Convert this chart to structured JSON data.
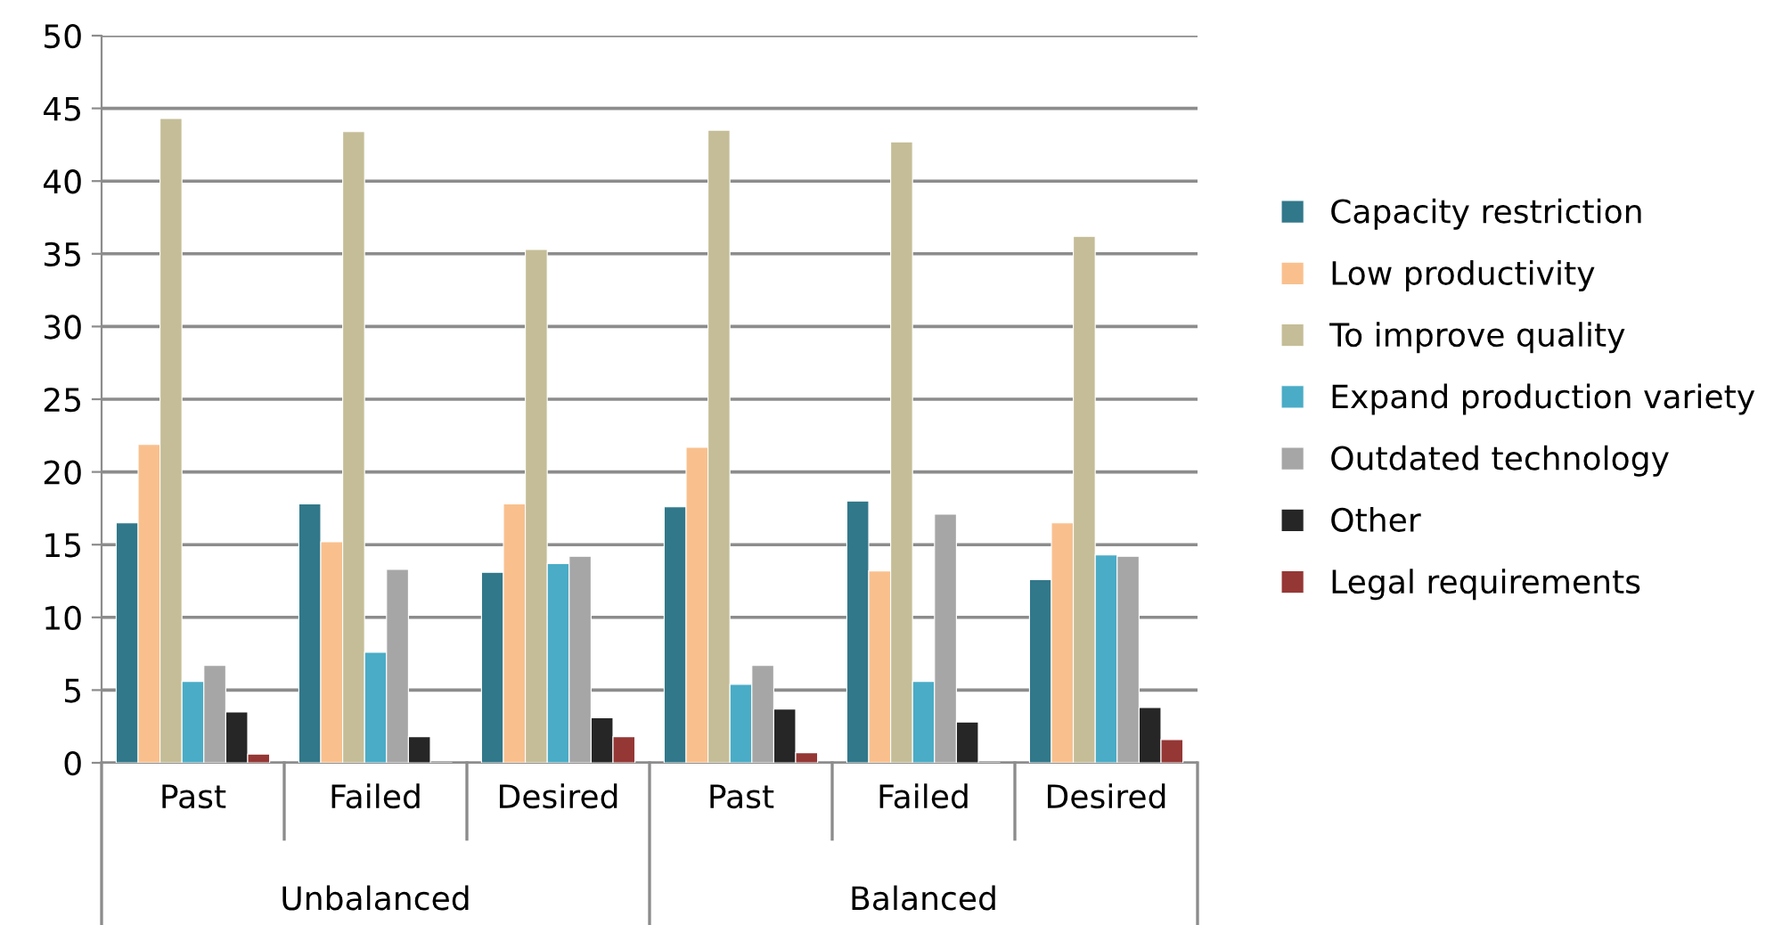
{
  "chart_data": {
    "type": "bar",
    "categories": [
      "Past",
      "Failed",
      "Desired",
      "Past",
      "Failed",
      "Desired"
    ],
    "series": [
      {
        "name": "Capacity restriction",
        "color": "#31788a",
        "values": [
          16.5,
          17.8,
          13.1,
          17.6,
          18.0,
          12.6
        ]
      },
      {
        "name": "Low productivity",
        "color": "#f9c08e",
        "values": [
          21.9,
          15.2,
          17.8,
          21.7,
          13.2,
          16.5
        ]
      },
      {
        "name": "To improve quality",
        "color": "#c4bd97",
        "values": [
          44.3,
          43.4,
          35.3,
          43.5,
          42.7,
          36.2
        ]
      },
      {
        "name": "Expand production variety",
        "color": "#4aacc6",
        "values": [
          5.6,
          7.6,
          13.7,
          5.4,
          5.6,
          14.3
        ]
      },
      {
        "name": "Outdated technology",
        "color": "#a6a6a6",
        "values": [
          6.7,
          13.3,
          14.2,
          6.7,
          17.1,
          14.2
        ]
      },
      {
        "name": "Other",
        "color": "#262626",
        "values": [
          3.5,
          1.8,
          3.1,
          3.7,
          2.8,
          3.8
        ]
      },
      {
        "name": "Legal requirements",
        "color": "#953735",
        "values": [
          0.6,
          null,
          1.8,
          0.7,
          null,
          1.6
        ]
      }
    ],
    "annotations": [
      "Unbalanced",
      "Balanced"
    ],
    "ylim": [
      0,
      50
    ],
    "yticks": [
      0,
      5,
      10,
      15,
      20,
      25,
      30,
      35,
      40,
      45,
      50
    ],
    "grid": "y",
    "legend": "right"
  }
}
